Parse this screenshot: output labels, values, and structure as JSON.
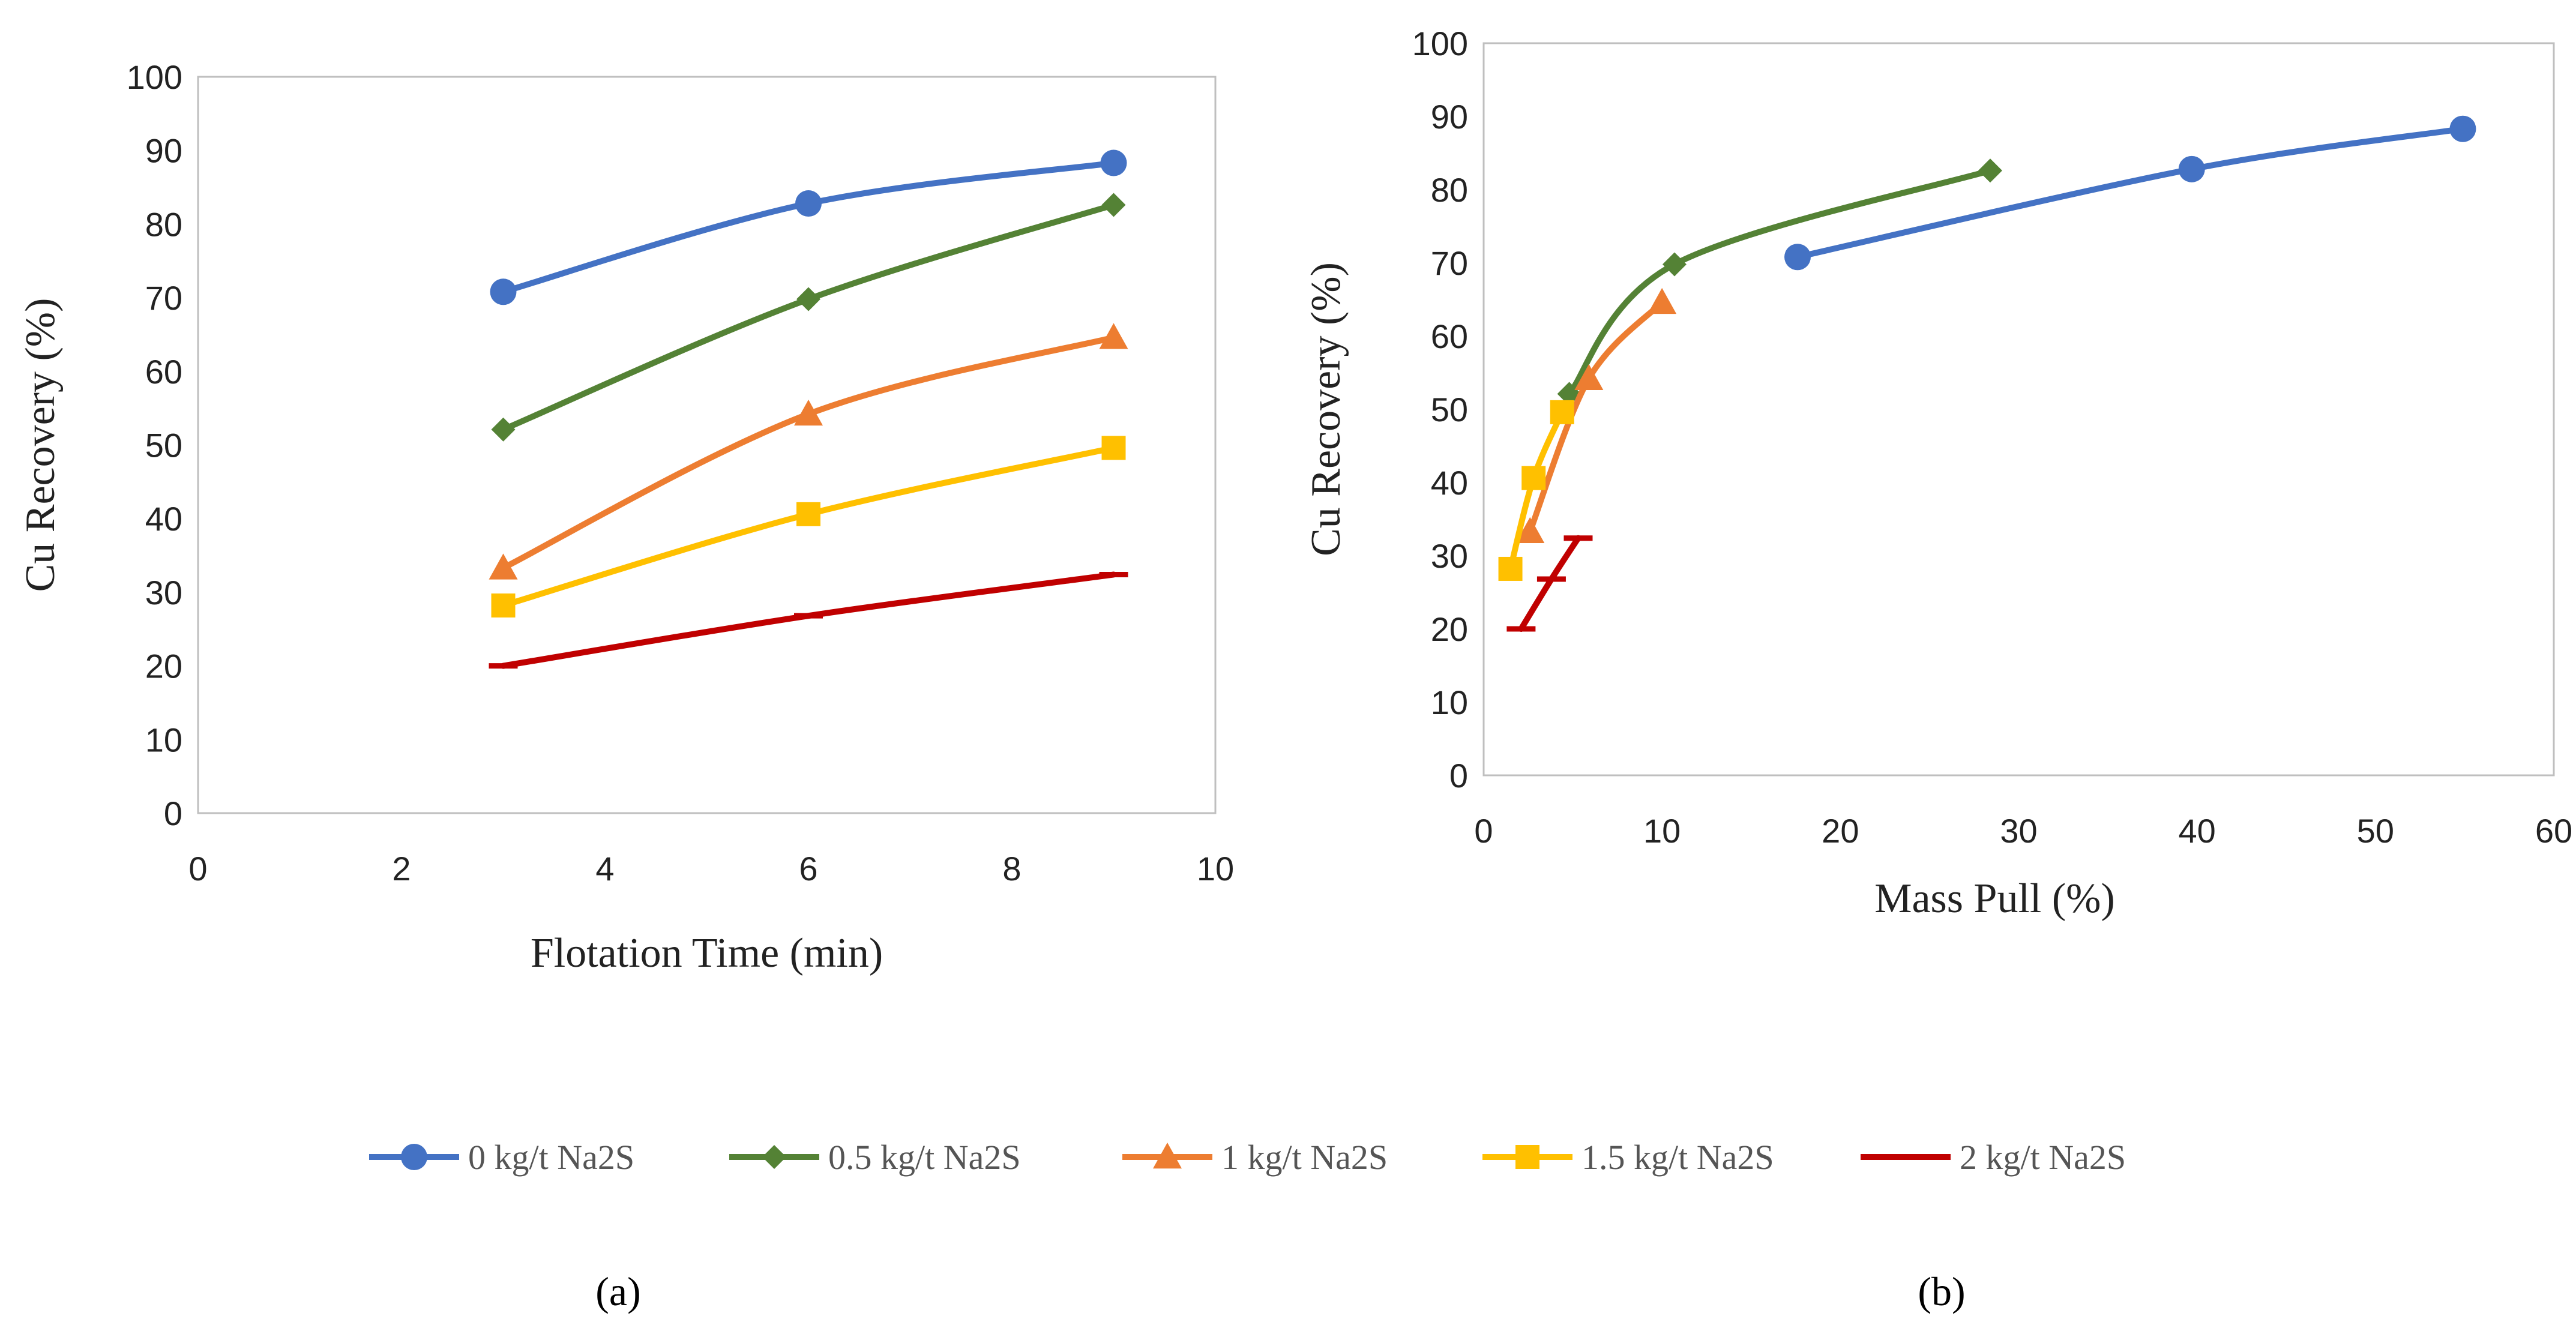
{
  "chart_data": [
    {
      "type": "line",
      "title": "",
      "panel_label": "(a)",
      "xlabel": "Flotation Time (min)",
      "ylabel": "Cu Recovery (%)",
      "xlim": [
        0,
        10
      ],
      "ylim": [
        0,
        100
      ],
      "xticks": [
        0,
        2,
        4,
        6,
        8,
        10
      ],
      "yticks": [
        0,
        10,
        20,
        30,
        40,
        50,
        60,
        70,
        80,
        90,
        100
      ],
      "series": [
        {
          "name": "0 kg/t Na2S",
          "color": "#4472C4",
          "marker": "circle",
          "x": [
            3,
            6,
            9
          ],
          "y": [
            70.8,
            82.8,
            88.3
          ]
        },
        {
          "name": "0.5 kg/t Na2S",
          "color": "#548235",
          "marker": "diamond",
          "x": [
            3,
            6,
            9
          ],
          "y": [
            52.1,
            69.8,
            82.6
          ]
        },
        {
          "name": "1 kg/t Na2S",
          "color": "#ED7D31",
          "marker": "triangle",
          "x": [
            3,
            6,
            9
          ],
          "y": [
            33.3,
            54.2,
            64.6
          ]
        },
        {
          "name": "1.5 kg/t Na2S",
          "color": "#FFC000",
          "marker": "square",
          "x": [
            3,
            6,
            9
          ],
          "y": [
            28.2,
            40.6,
            49.6
          ]
        },
        {
          "name": "2 kg/t Na2S",
          "color": "#C00000",
          "marker": "dash",
          "x": [
            3,
            6,
            9
          ],
          "y": [
            20.0,
            26.8,
            32.4
          ]
        }
      ]
    },
    {
      "type": "line",
      "title": "",
      "panel_label": "(b)",
      "xlabel": "Mass Pull  (%)",
      "ylabel": "Cu Recovery (%)",
      "xlim": [
        0,
        60
      ],
      "ylim": [
        0,
        100
      ],
      "xticks": [
        0,
        10,
        20,
        30,
        40,
        50,
        60
      ],
      "yticks": [
        0,
        10,
        20,
        30,
        40,
        50,
        60,
        70,
        80,
        90,
        100
      ],
      "series": [
        {
          "name": "0 kg/t Na2S",
          "color": "#4472C4",
          "marker": "circle",
          "x": [
            17.6,
            39.7,
            54.9
          ],
          "y": [
            70.8,
            82.8,
            88.3
          ]
        },
        {
          "name": "0.5 kg/t Na2S",
          "color": "#548235",
          "marker": "diamond",
          "x": [
            4.8,
            10.7,
            28.4
          ],
          "y": [
            52.1,
            69.8,
            82.6
          ]
        },
        {
          "name": "1 kg/t Na2S",
          "color": "#ED7D31",
          "marker": "triangle",
          "x": [
            2.6,
            5.9,
            10.0
          ],
          "y": [
            33.3,
            54.2,
            64.6
          ]
        },
        {
          "name": "1.5 kg/t Na2S",
          "color": "#FFC000",
          "marker": "square",
          "x": [
            1.5,
            2.8,
            4.4
          ],
          "y": [
            28.2,
            40.6,
            49.6
          ]
        },
        {
          "name": "2 kg/t Na2S",
          "color": "#C00000",
          "marker": "dash",
          "x": [
            2.1,
            3.8,
            5.3
          ],
          "y": [
            20.0,
            26.8,
            32.4
          ]
        }
      ]
    }
  ],
  "legend": {
    "position": "bottom-center",
    "entries": [
      "0 kg/t Na2S",
      "0.5 kg/t Na2S",
      "1 kg/t Na2S",
      "1.5 kg/t Na2S",
      "2 kg/t Na2S"
    ]
  }
}
